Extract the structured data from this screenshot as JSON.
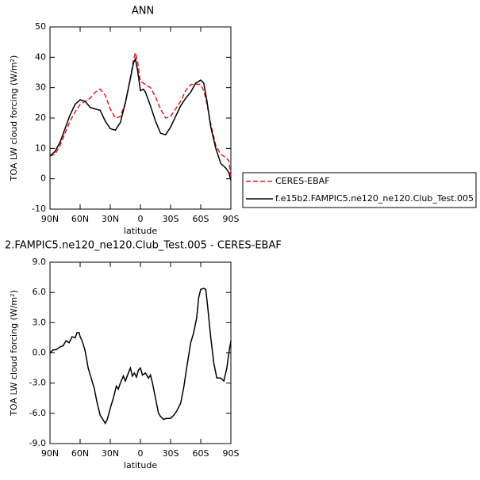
{
  "chart_data": [
    {
      "type": "line",
      "title": "ANN",
      "xlabel": "latitude",
      "ylabel": "TOA LW cloud forcing (W/m²)",
      "x": [
        90,
        85,
        80,
        75,
        70,
        65,
        60,
        55,
        50,
        45,
        40,
        35,
        30,
        25,
        20,
        15,
        10,
        7,
        5,
        3,
        0,
        -3,
        -5,
        -10,
        -15,
        -20,
        -25,
        -30,
        -35,
        -40,
        -45,
        -50,
        -55,
        -60,
        -63,
        -66,
        -70,
        -75,
        -80,
        -85,
        -88,
        -90
      ],
      "series": [
        {
          "name": "CERES-EBAF",
          "color": "#e31a1c",
          "linestyle": "dashed",
          "values": [
            7.5,
            8,
            11,
            15,
            19,
            22,
            24.5,
            25.5,
            26.5,
            28.5,
            29.5,
            27.5,
            23,
            20,
            20.5,
            25,
            33,
            39,
            41.5,
            39,
            32,
            31.5,
            31,
            30,
            27,
            23,
            20,
            20.5,
            23,
            25.5,
            29,
            31,
            31.2,
            31,
            29,
            25,
            18,
            11,
            8,
            7,
            6,
            0
          ]
        },
        {
          "name": "f.e15b2.FAMPIC5.ne120_ne120.Club_Test.005",
          "color": "#000000",
          "linestyle": "solid",
          "values": [
            7.5,
            9,
            12,
            16.5,
            21,
            24.5,
            26,
            25.5,
            23.5,
            23,
            22.5,
            19,
            16.5,
            16,
            18.5,
            25,
            33,
            38,
            39.5,
            36,
            29,
            29.5,
            28.5,
            24,
            19,
            15,
            14.5,
            17,
            20.5,
            24,
            26.5,
            28.5,
            31.5,
            32.5,
            31.5,
            26,
            17,
            10,
            5,
            3.5,
            2,
            -0.5
          ]
        }
      ],
      "xlim": [
        90,
        -90
      ],
      "xticks": [
        {
          "value": 90,
          "label": "90N"
        },
        {
          "value": 60,
          "label": "60N"
        },
        {
          "value": 30,
          "label": "30N"
        },
        0,
        {
          "value": -30,
          "label": "30S"
        },
        {
          "value": -60,
          "label": "60S"
        },
        {
          "value": -90,
          "label": "90S"
        }
      ],
      "ylim": [
        -10,
        50
      ],
      "yticks": [
        -10,
        0,
        10,
        20,
        30,
        40,
        50
      ],
      "legend": "right"
    },
    {
      "type": "line",
      "title": "2.FAMPIC5.ne120_ne120.Club_Test.005 - CERES-EBAF",
      "xlabel": "latitude",
      "ylabel": "TOA LW cloud forcing (W/m²)",
      "x": [
        90,
        87,
        84,
        80,
        77,
        74,
        71,
        68,
        65,
        63,
        61,
        60,
        58,
        55,
        52,
        49,
        46,
        43,
        40,
        38,
        35,
        33,
        30,
        27,
        24,
        22,
        20,
        17,
        15,
        12,
        10,
        8,
        6,
        4,
        2,
        0,
        -2,
        -5,
        -8,
        -10,
        -12,
        -14,
        -16,
        -18,
        -20,
        -23,
        -26,
        -30,
        -33,
        -36,
        -40,
        -43,
        -46,
        -50,
        -53,
        -56,
        -58,
        -60,
        -63,
        -65,
        -67,
        -70,
        -73,
        -76,
        -80,
        -83,
        -86,
        -88,
        -90
      ],
      "series": [
        {
          "color": "#000000",
          "linestyle": "solid",
          "values": [
            0,
            0.3,
            0.3,
            0.6,
            0.7,
            1.2,
            1.0,
            1.6,
            1.5,
            2.0,
            2.0,
            1.6,
            1.2,
            0.2,
            -1.5,
            -2.5,
            -3.5,
            -5,
            -6.2,
            -6.5,
            -7,
            -6.6,
            -5.5,
            -4.5,
            -3.3,
            -3.6,
            -3,
            -2.3,
            -2.8,
            -2,
            -1.5,
            -2.3,
            -2,
            -2.4,
            -1.7,
            -1.5,
            -2.2,
            -2,
            -2.5,
            -2.2,
            -3,
            -4,
            -5,
            -6,
            -6.3,
            -6.6,
            -6.5,
            -6.5,
            -6.2,
            -5.8,
            -5,
            -3.5,
            -1.5,
            1,
            2,
            3.5,
            5.5,
            6.3,
            6.4,
            6.3,
            4.5,
            1.5,
            -1,
            -2.5,
            -2.5,
            -2.8,
            -1.5,
            0,
            1.2
          ]
        }
      ],
      "xlim": [
        90,
        -90
      ],
      "xticks": [
        {
          "value": 90,
          "label": "90N"
        },
        {
          "value": 60,
          "label": "60N"
        },
        {
          "value": 30,
          "label": "30N"
        },
        0,
        {
          "value": -30,
          "label": "30S"
        },
        {
          "value": -60,
          "label": "60S"
        },
        {
          "value": -90,
          "label": "90S"
        }
      ],
      "ylim": [
        -9,
        9
      ],
      "yticks": [
        {
          "value": -9,
          "label": "-9.0"
        },
        {
          "value": -6,
          "label": "-6.0"
        },
        {
          "value": -3,
          "label": "-3.0"
        },
        {
          "value": 0,
          "label": "0.0"
        },
        {
          "value": 3,
          "label": "3.0"
        },
        {
          "value": 6,
          "label": "6.0"
        },
        {
          "value": 9,
          "label": "9.0"
        }
      ]
    }
  ]
}
